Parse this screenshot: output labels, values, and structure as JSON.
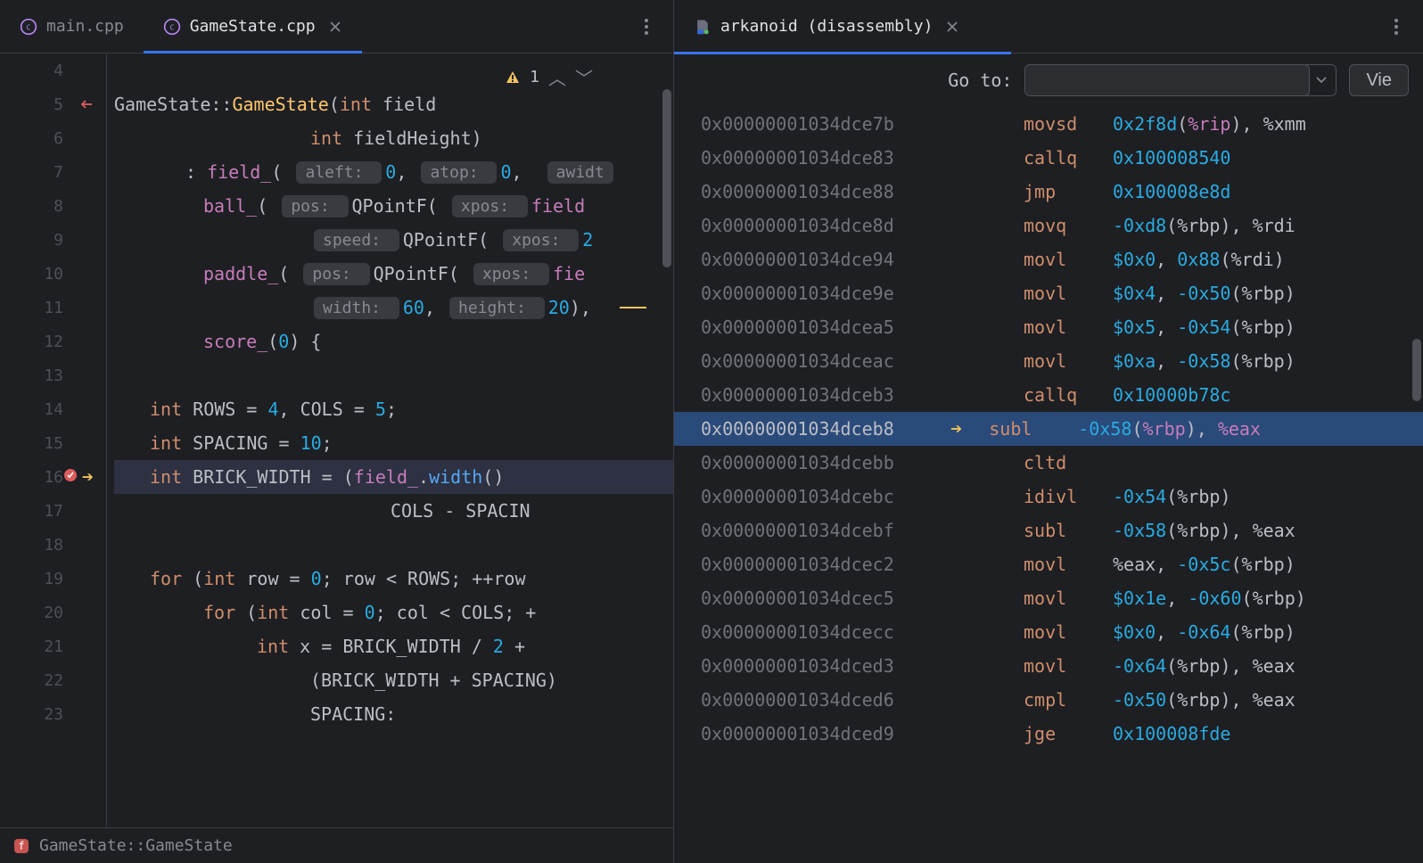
{
  "left": {
    "tabs": [
      {
        "label": "main.cpp",
        "active": false,
        "icon": "cpp"
      },
      {
        "label": "GameState.cpp",
        "active": true,
        "icon": "cpp",
        "closeable": true
      }
    ],
    "warning_count": "1",
    "breadcrumb": "GameState::GameState",
    "lines": [
      {
        "num": "4"
      },
      {
        "num": "5",
        "tokens": [
          [
            "class",
            "GameState"
          ],
          [
            "punct",
            "::"
          ],
          [
            "gold",
            "GameState"
          ],
          [
            "punct",
            "("
          ],
          [
            "type",
            "int"
          ],
          [
            "id",
            " field"
          ]
        ],
        "arrow_in": true
      },
      {
        "num": "6",
        "indent": 220,
        "tokens": [
          [
            "type",
            "int"
          ],
          [
            "id",
            " fieldHeight"
          ],
          [
            "punct",
            ")"
          ]
        ]
      },
      {
        "num": "7",
        "indent": 80,
        "tokens": [
          [
            "punct",
            ": "
          ],
          [
            "field",
            "field_"
          ],
          [
            "punct",
            "( "
          ],
          [
            "hint",
            "aleft: "
          ],
          [
            "num",
            "0"
          ],
          [
            "punct",
            ", "
          ],
          [
            "hint",
            "atop: "
          ],
          [
            "num",
            "0"
          ],
          [
            "punct",
            ",  "
          ],
          [
            "hint",
            "awidt"
          ]
        ]
      },
      {
        "num": "8",
        "indent": 100,
        "tokens": [
          [
            "field",
            "ball_"
          ],
          [
            "punct",
            "( "
          ],
          [
            "hint",
            "pos: "
          ],
          [
            "id",
            "QPointF"
          ],
          [
            "punct",
            "( "
          ],
          [
            "hint",
            "xpos: "
          ],
          [
            "field",
            "field"
          ]
        ]
      },
      {
        "num": "9",
        "indent": 220,
        "tokens": [
          [
            "hint",
            "speed: "
          ],
          [
            "id",
            "QPointF"
          ],
          [
            "punct",
            "( "
          ],
          [
            "hint",
            "xpos: "
          ],
          [
            "num",
            "2"
          ]
        ]
      },
      {
        "num": "10",
        "indent": 100,
        "tokens": [
          [
            "field",
            "paddle_"
          ],
          [
            "punct",
            "( "
          ],
          [
            "hint",
            "pos: "
          ],
          [
            "id",
            "QPointF"
          ],
          [
            "punct",
            "( "
          ],
          [
            "hint",
            "xpos: "
          ],
          [
            "field",
            "fie"
          ]
        ]
      },
      {
        "num": "11",
        "indent": 220,
        "tokens": [
          [
            "hint",
            "width: "
          ],
          [
            "num",
            "60"
          ],
          [
            "punct",
            ", "
          ],
          [
            "hint",
            "height: "
          ],
          [
            "num",
            "20"
          ],
          [
            "punct",
            "),"
          ]
        ],
        "yellow_mark": true
      },
      {
        "num": "12",
        "indent": 100,
        "tokens": [
          [
            "field",
            "score_"
          ],
          [
            "punct",
            "("
          ],
          [
            "num",
            "0"
          ],
          [
            "punct",
            ") {"
          ]
        ]
      },
      {
        "num": "13"
      },
      {
        "num": "14",
        "indent": 40,
        "tokens": [
          [
            "type",
            "int"
          ],
          [
            "id",
            " ROWS = "
          ],
          [
            "num",
            "4"
          ],
          [
            "punct",
            ", "
          ],
          [
            "id",
            "COLS = "
          ],
          [
            "num",
            "5"
          ],
          [
            "punct",
            ";"
          ]
        ]
      },
      {
        "num": "15",
        "indent": 40,
        "tokens": [
          [
            "type",
            "int"
          ],
          [
            "id",
            " SPACING = "
          ],
          [
            "num",
            "10"
          ],
          [
            "punct",
            ";"
          ]
        ]
      },
      {
        "num": "16",
        "indent": 40,
        "tokens": [
          [
            "type",
            "int"
          ],
          [
            "id",
            " BRICK_WIDTH = ("
          ],
          [
            "field",
            "field_"
          ],
          [
            "punct",
            "."
          ],
          [
            "func",
            "width"
          ],
          [
            "punct",
            "()"
          ]
        ],
        "current": true
      },
      {
        "num": "17",
        "indent": 310,
        "tokens": [
          [
            "id",
            "COLS - SPACIN"
          ]
        ]
      },
      {
        "num": "18"
      },
      {
        "num": "19",
        "indent": 40,
        "tokens": [
          [
            "kw",
            "for"
          ],
          [
            "punct",
            " ("
          ],
          [
            "type",
            "int"
          ],
          [
            "id",
            " row = "
          ],
          [
            "num",
            "0"
          ],
          [
            "punct",
            "; "
          ],
          [
            "id",
            "row < ROWS; ++row"
          ]
        ]
      },
      {
        "num": "20",
        "indent": 100,
        "tokens": [
          [
            "kw",
            "for"
          ],
          [
            "punct",
            " ("
          ],
          [
            "type",
            "int"
          ],
          [
            "id",
            " col = "
          ],
          [
            "num",
            "0"
          ],
          [
            "punct",
            "; "
          ],
          [
            "id",
            "col < COLS; +"
          ]
        ]
      },
      {
        "num": "21",
        "indent": 160,
        "tokens": [
          [
            "type",
            "int"
          ],
          [
            "id",
            " x = BRICK_WIDTH / "
          ],
          [
            "num",
            "2"
          ],
          [
            "id",
            " +"
          ]
        ]
      },
      {
        "num": "22",
        "indent": 220,
        "tokens": [
          [
            "id",
            "(BRICK_WIDTH + SPACING)"
          ]
        ]
      },
      {
        "num": "23",
        "indent": 220,
        "tokens": [
          [
            "id",
            "SPACING:"
          ]
        ]
      }
    ]
  },
  "right": {
    "tab": {
      "label": "arkanoid (disassembly)",
      "icon": "asm",
      "closeable": true
    },
    "goto_label": "Go to:",
    "goto_value": "",
    "view_label": "Vie",
    "progress_pct": 45,
    "asm": [
      {
        "addr": "0x00000001034dce7b",
        "op": "movsd",
        "args": [
          [
            "arg",
            "0x2f8d"
          ],
          [
            "punct",
            "("
          ],
          [
            "hlreg",
            "%rip"
          ],
          [
            "punct",
            "), "
          ],
          [
            "reg",
            "%xmm"
          ]
        ]
      },
      {
        "addr": "0x00000001034dce83",
        "op": "callq",
        "args": [
          [
            "arg",
            "0x100008540"
          ]
        ]
      },
      {
        "addr": "0x00000001034dce88",
        "op": "jmp",
        "args": [
          [
            "arg",
            "0x100008e8d"
          ]
        ]
      },
      {
        "addr": "0x00000001034dce8d",
        "op": "movq",
        "args": [
          [
            "arg",
            "-0xd8"
          ],
          [
            "punct",
            "("
          ],
          [
            "reg",
            "%rbp"
          ],
          [
            "punct",
            "), "
          ],
          [
            "reg",
            "%rdi"
          ]
        ]
      },
      {
        "addr": "0x00000001034dce94",
        "op": "movl",
        "args": [
          [
            "arg",
            "$0x0"
          ],
          [
            "punct",
            ", "
          ],
          [
            "arg",
            "0x88"
          ],
          [
            "punct",
            "("
          ],
          [
            "reg",
            "%rdi"
          ],
          [
            "punct",
            ")"
          ]
        ]
      },
      {
        "addr": "0x00000001034dce9e",
        "op": "movl",
        "args": [
          [
            "arg",
            "$0x4"
          ],
          [
            "punct",
            ", "
          ],
          [
            "arg",
            "-0x50"
          ],
          [
            "punct",
            "("
          ],
          [
            "reg",
            "%rbp"
          ],
          [
            "punct",
            ")"
          ]
        ]
      },
      {
        "addr": "0x00000001034dcea5",
        "op": "movl",
        "args": [
          [
            "arg",
            "$0x5"
          ],
          [
            "punct",
            ", "
          ],
          [
            "arg",
            "-0x54"
          ],
          [
            "punct",
            "("
          ],
          [
            "reg",
            "%rbp"
          ],
          [
            "punct",
            ")"
          ]
        ]
      },
      {
        "addr": "0x00000001034dceac",
        "op": "movl",
        "args": [
          [
            "arg",
            "$0xa"
          ],
          [
            "punct",
            ", "
          ],
          [
            "arg",
            "-0x58"
          ],
          [
            "punct",
            "("
          ],
          [
            "reg",
            "%rbp"
          ],
          [
            "punct",
            ")"
          ]
        ]
      },
      {
        "addr": "0x00000001034dceb3",
        "op": "callq",
        "args": [
          [
            "arg",
            "0x10000b78c"
          ]
        ]
      },
      {
        "addr": "0x00000001034dceb8",
        "op": "subl",
        "args": [
          [
            "arg",
            "-0x58"
          ],
          [
            "punct",
            "("
          ],
          [
            "hlreg",
            "%rbp"
          ],
          [
            "punct",
            "), "
          ],
          [
            "hlreg",
            "%eax"
          ]
        ],
        "current": true
      },
      {
        "addr": "0x00000001034dcebb",
        "op": "cltd",
        "args": []
      },
      {
        "addr": "0x00000001034dcebc",
        "op": "idivl",
        "args": [
          [
            "arg",
            "-0x54"
          ],
          [
            "punct",
            "("
          ],
          [
            "reg",
            "%rbp"
          ],
          [
            "punct",
            ")"
          ]
        ]
      },
      {
        "addr": "0x00000001034dcebf",
        "op": "subl",
        "args": [
          [
            "arg",
            "-0x58"
          ],
          [
            "punct",
            "("
          ],
          [
            "reg",
            "%rbp"
          ],
          [
            "punct",
            "), "
          ],
          [
            "reg",
            "%eax"
          ]
        ]
      },
      {
        "addr": "0x00000001034dcec2",
        "op": "movl",
        "args": [
          [
            "reg",
            "%eax"
          ],
          [
            "punct",
            ", "
          ],
          [
            "arg",
            "-0x5c"
          ],
          [
            "punct",
            "("
          ],
          [
            "reg",
            "%rbp"
          ],
          [
            "punct",
            ")"
          ]
        ]
      },
      {
        "addr": "0x00000001034dcec5",
        "op": "movl",
        "args": [
          [
            "arg",
            "$0x1e"
          ],
          [
            "punct",
            ", "
          ],
          [
            "arg",
            "-0x60"
          ],
          [
            "punct",
            "("
          ],
          [
            "reg",
            "%rbp"
          ],
          [
            "punct",
            ")"
          ]
        ]
      },
      {
        "addr": "0x00000001034dcecc",
        "op": "movl",
        "args": [
          [
            "arg",
            "$0x0"
          ],
          [
            "punct",
            ", "
          ],
          [
            "arg",
            "-0x64"
          ],
          [
            "punct",
            "("
          ],
          [
            "reg",
            "%rbp"
          ],
          [
            "punct",
            ")"
          ]
        ]
      },
      {
        "addr": "0x00000001034dced3",
        "op": "movl",
        "args": [
          [
            "arg",
            "-0x64"
          ],
          [
            "punct",
            "("
          ],
          [
            "reg",
            "%rbp"
          ],
          [
            "punct",
            "), "
          ],
          [
            "reg",
            "%eax"
          ]
        ]
      },
      {
        "addr": "0x00000001034dced6",
        "op": "cmpl",
        "args": [
          [
            "arg",
            "-0x50"
          ],
          [
            "punct",
            "("
          ],
          [
            "reg",
            "%rbp"
          ],
          [
            "punct",
            "), "
          ],
          [
            "reg",
            "%eax"
          ]
        ]
      },
      {
        "addr": "0x00000001034dced9",
        "op": "jge",
        "args": [
          [
            "arg",
            "0x100008fde"
          ]
        ]
      }
    ]
  },
  "colors": {
    "bg": "#1e1f22",
    "accent": "#3574f0",
    "keyword": "#cf8e6d",
    "member": "#c77dbb",
    "number": "#29abe2",
    "gold": "#ffc66d",
    "func": "#56a8f5",
    "dim": "#6f737a",
    "yellow": "#f2c55c"
  }
}
